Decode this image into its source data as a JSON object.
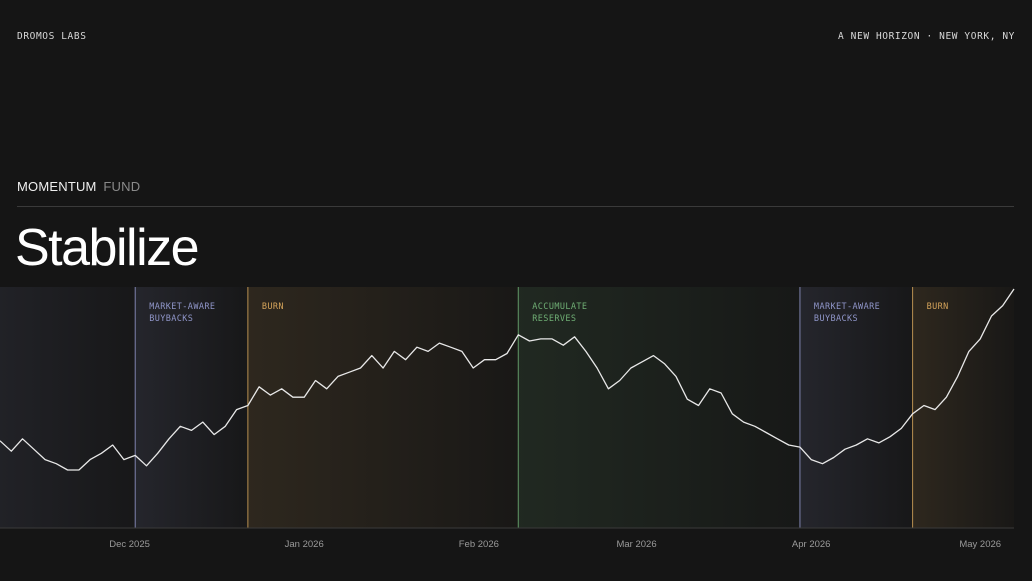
{
  "header": {
    "brand": "DROMOS LABS",
    "tagline": "A NEW HORIZON · NEW YORK, NY"
  },
  "fund": {
    "name_primary": "MOMENTUM",
    "name_secondary": "FUND"
  },
  "headline": "Stabilize",
  "colors": {
    "background": "#151515",
    "line": "#e8e8e8",
    "market_aware": "#8f95c8",
    "burn": "#d4a35a",
    "accumulate": "#6fae74"
  },
  "chart_data": {
    "type": "line",
    "x_start": "2025-11-08",
    "x_end": "2026-05-07",
    "x_ticks": [
      {
        "date": "2025-12-01",
        "label": "Dec 2025"
      },
      {
        "date": "2026-01-01",
        "label": "Jan 2026"
      },
      {
        "date": "2026-02-01",
        "label": "Feb 2026"
      },
      {
        "date": "2026-03-01",
        "label": "Mar 2026"
      },
      {
        "date": "2026-04-01",
        "label": "Apr 2026"
      },
      {
        "date": "2026-05-01",
        "label": "May 2026"
      }
    ],
    "ylim": [
      0,
      100
    ],
    "grid": false,
    "regions": [
      {
        "label": [
          "MARKET-AWARE",
          "BUYBACKS"
        ],
        "start": "2025-12-02",
        "color": "#8f95c8"
      },
      {
        "label": [
          "BURN"
        ],
        "start": "2025-12-22",
        "color": "#d4a35a"
      },
      {
        "label": [
          "ACCUMULATE",
          "RESERVES"
        ],
        "start": "2026-02-08",
        "color": "#6fae74"
      },
      {
        "label": [
          "MARKET-AWARE",
          "BUYBACKS"
        ],
        "start": "2026-03-30",
        "color": "#8f95c8"
      },
      {
        "label": [
          "BURN"
        ],
        "start": "2026-04-19",
        "color": "#d4a35a"
      }
    ],
    "series": [
      {
        "points": [
          [
            "2025-11-08",
            27
          ],
          [
            "2025-11-10",
            22
          ],
          [
            "2025-11-12",
            28
          ],
          [
            "2025-11-14",
            23
          ],
          [
            "2025-11-16",
            18
          ],
          [
            "2025-11-18",
            16
          ],
          [
            "2025-11-20",
            13
          ],
          [
            "2025-11-22",
            13
          ],
          [
            "2025-11-24",
            18
          ],
          [
            "2025-11-26",
            21
          ],
          [
            "2025-11-28",
            25
          ],
          [
            "2025-11-30",
            18
          ],
          [
            "2025-12-02",
            20
          ],
          [
            "2025-12-04",
            15
          ],
          [
            "2025-12-06",
            21
          ],
          [
            "2025-12-08",
            28
          ],
          [
            "2025-12-10",
            34
          ],
          [
            "2025-12-12",
            32
          ],
          [
            "2025-12-14",
            36
          ],
          [
            "2025-12-16",
            30
          ],
          [
            "2025-12-18",
            34
          ],
          [
            "2025-12-20",
            42
          ],
          [
            "2025-12-22",
            44
          ],
          [
            "2025-12-24",
            53
          ],
          [
            "2025-12-26",
            49
          ],
          [
            "2025-12-28",
            52
          ],
          [
            "2025-12-30",
            48
          ],
          [
            "2026-01-01",
            48
          ],
          [
            "2026-01-03",
            56
          ],
          [
            "2026-01-05",
            52
          ],
          [
            "2026-01-07",
            58
          ],
          [
            "2026-01-09",
            60
          ],
          [
            "2026-01-11",
            62
          ],
          [
            "2026-01-13",
            68
          ],
          [
            "2026-01-15",
            62
          ],
          [
            "2026-01-17",
            70
          ],
          [
            "2026-01-19",
            66
          ],
          [
            "2026-01-21",
            72
          ],
          [
            "2026-01-23",
            70
          ],
          [
            "2026-01-25",
            74
          ],
          [
            "2026-01-27",
            72
          ],
          [
            "2026-01-29",
            70
          ],
          [
            "2026-01-31",
            62
          ],
          [
            "2026-02-02",
            66
          ],
          [
            "2026-02-04",
            66
          ],
          [
            "2026-02-06",
            69
          ],
          [
            "2026-02-08",
            78
          ],
          [
            "2026-02-10",
            75
          ],
          [
            "2026-02-12",
            76
          ],
          [
            "2026-02-14",
            76
          ],
          [
            "2026-02-16",
            73
          ],
          [
            "2026-02-18",
            77
          ],
          [
            "2026-02-20",
            70
          ],
          [
            "2026-02-22",
            62
          ],
          [
            "2026-02-24",
            52
          ],
          [
            "2026-02-26",
            56
          ],
          [
            "2026-02-28",
            62
          ],
          [
            "2026-03-02",
            65
          ],
          [
            "2026-03-04",
            68
          ],
          [
            "2026-03-06",
            64
          ],
          [
            "2026-03-08",
            58
          ],
          [
            "2026-03-10",
            47
          ],
          [
            "2026-03-12",
            44
          ],
          [
            "2026-03-14",
            52
          ],
          [
            "2026-03-16",
            50
          ],
          [
            "2026-03-18",
            40
          ],
          [
            "2026-03-20",
            36
          ],
          [
            "2026-03-22",
            34
          ],
          [
            "2026-03-24",
            31
          ],
          [
            "2026-03-26",
            28
          ],
          [
            "2026-03-28",
            25
          ],
          [
            "2026-03-30",
            24
          ],
          [
            "2026-04-01",
            18
          ],
          [
            "2026-04-03",
            16
          ],
          [
            "2026-04-05",
            19
          ],
          [
            "2026-04-07",
            23
          ],
          [
            "2026-04-09",
            25
          ],
          [
            "2026-04-11",
            28
          ],
          [
            "2026-04-13",
            26
          ],
          [
            "2026-04-15",
            29
          ],
          [
            "2026-04-17",
            33
          ],
          [
            "2026-04-19",
            40
          ],
          [
            "2026-04-21",
            44
          ],
          [
            "2026-04-23",
            42
          ],
          [
            "2026-04-25",
            48
          ],
          [
            "2026-04-27",
            58
          ],
          [
            "2026-04-29",
            70
          ],
          [
            "2026-05-01",
            76
          ],
          [
            "2026-05-03",
            87
          ],
          [
            "2026-05-05",
            92
          ],
          [
            "2026-05-07",
            100
          ]
        ]
      }
    ]
  }
}
